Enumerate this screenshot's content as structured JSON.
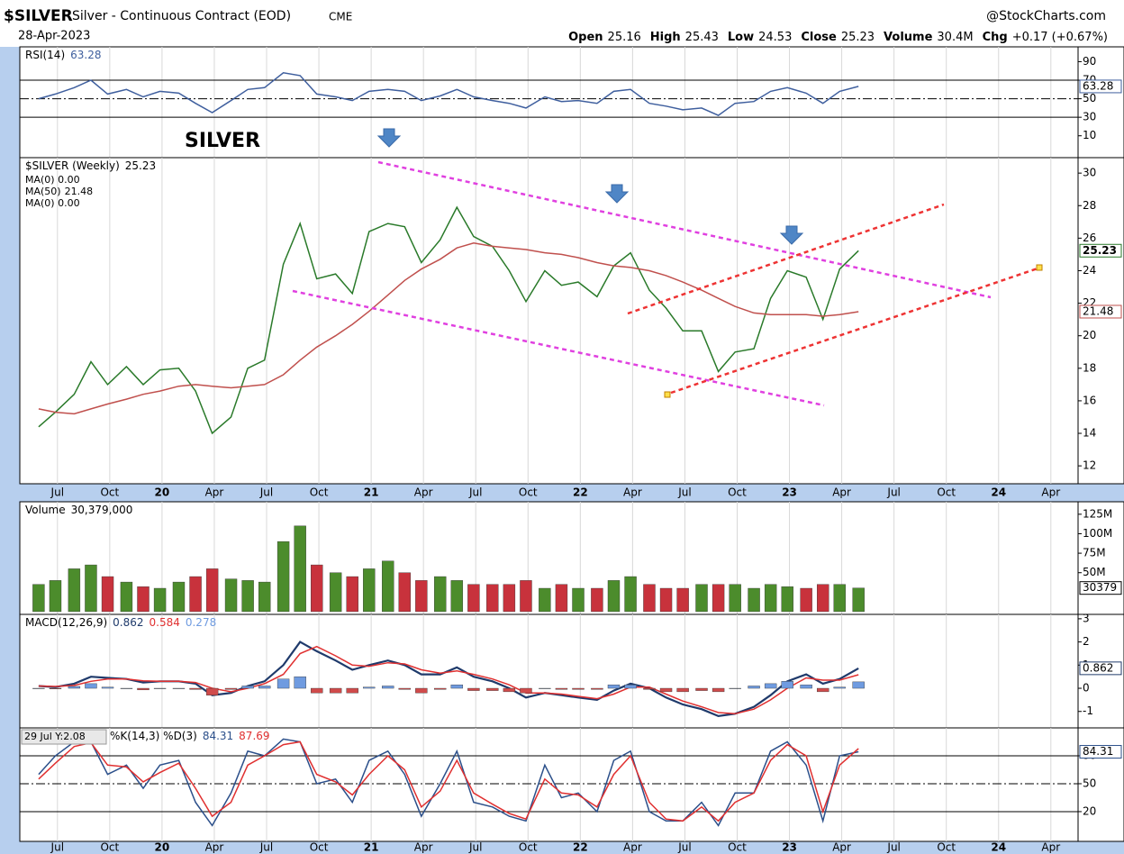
{
  "header": {
    "symbol": "$SILVER",
    "name": "Silver - Continuous Contract (EOD)",
    "exchange": "CME",
    "brand": "@StockCharts.com",
    "date": "28-Apr-2023",
    "quote": [
      {
        "label": "Open",
        "value": 25.16
      },
      {
        "label": "High",
        "value": 25.43
      },
      {
        "label": "Low",
        "value": 24.53
      },
      {
        "label": "Close",
        "value": 25.23
      },
      {
        "label": "Volume",
        "value": "30.4M"
      },
      {
        "label": "Chg",
        "value": "+0.17 (+0.67%)"
      }
    ]
  },
  "chart_data": [
    {
      "type": "line",
      "title": "RSI(14)",
      "x": [
        2019.41,
        2019.49,
        2019.58,
        2019.66,
        2019.74,
        2019.83,
        2019.91,
        2019.99,
        2020.08,
        2020.16,
        2020.24,
        2020.33,
        2020.41,
        2020.49,
        2020.58,
        2020.66,
        2020.74,
        2020.83,
        2020.91,
        2020.99,
        2021.08,
        2021.16,
        2021.24,
        2021.33,
        2021.41,
        2021.49,
        2021.58,
        2021.66,
        2021.74,
        2021.83,
        2021.91,
        2021.99,
        2022.08,
        2022.16,
        2022.24,
        2022.33,
        2022.41,
        2022.49,
        2022.58,
        2022.66,
        2022.74,
        2022.83,
        2022.91,
        2022.99,
        2023.08,
        2023.16,
        2023.24,
        2023.33
      ],
      "xlim": [
        2019.32,
        2024.38
      ],
      "ylim": [
        -13.6,
        106
      ],
      "yticks": [
        10,
        30,
        50,
        70,
        90
      ],
      "reference_lines": [
        {
          "value": 70,
          "style": "solid"
        },
        {
          "value": 50,
          "style": "dashdot"
        },
        {
          "value": 30,
          "style": "solid"
        }
      ],
      "annotation": "SILVER",
      "series": [
        {
          "name": "RSI(14)",
          "color": "#3f5f9e",
          "marker": true,
          "values": [
            50,
            55,
            62,
            70,
            55,
            60,
            52,
            58,
            56,
            45,
            35,
            48,
            60,
            62,
            78,
            75,
            55,
            52,
            48,
            58,
            60,
            58,
            48,
            53,
            60,
            52,
            48,
            45,
            40,
            52,
            47,
            48,
            45,
            58,
            60,
            45,
            42,
            38,
            40,
            32,
            45,
            47,
            58,
            62,
            56,
            45,
            58,
            63.28
          ]
        }
      ]
    },
    {
      "type": "line",
      "title": "$SILVER (Weekly)",
      "x": [
        2019.41,
        2019.49,
        2019.58,
        2019.66,
        2019.74,
        2019.83,
        2019.91,
        2019.99,
        2020.08,
        2020.16,
        2020.24,
        2020.33,
        2020.41,
        2020.49,
        2020.58,
        2020.66,
        2020.74,
        2020.83,
        2020.91,
        2020.99,
        2021.08,
        2021.16,
        2021.24,
        2021.33,
        2021.41,
        2021.49,
        2021.58,
        2021.66,
        2021.74,
        2021.83,
        2021.91,
        2021.99,
        2022.08,
        2022.16,
        2022.24,
        2022.33,
        2022.41,
        2022.49,
        2022.58,
        2022.66,
        2022.74,
        2022.83,
        2022.91,
        2022.99,
        2023.08,
        2023.16,
        2023.24,
        2023.33
      ],
      "xlim": [
        2019.32,
        2024.38
      ],
      "ylim": [
        10.9,
        30.95
      ],
      "yticks": [
        12,
        14,
        16,
        18,
        20,
        22,
        24,
        26,
        28,
        30
      ],
      "xticks": [
        {
          "value": 2019.5,
          "label": "Jul"
        },
        {
          "value": 2019.75,
          "label": "Oct"
        },
        {
          "value": 2020,
          "label": "20"
        },
        {
          "value": 2020.25,
          "label": "Apr"
        },
        {
          "value": 2020.5,
          "label": "Jul"
        },
        {
          "value": 2020.75,
          "label": "Oct"
        },
        {
          "value": 2021,
          "label": "21"
        },
        {
          "value": 2021.25,
          "label": "Apr"
        },
        {
          "value": 2021.5,
          "label": "Jul"
        },
        {
          "value": 2021.75,
          "label": "Oct"
        },
        {
          "value": 2022,
          "label": "22"
        },
        {
          "value": 2022.25,
          "label": "Apr"
        },
        {
          "value": 2022.5,
          "label": "Jul"
        },
        {
          "value": 2022.75,
          "label": "Oct"
        },
        {
          "value": 2023,
          "label": "23"
        },
        {
          "value": 2023.25,
          "label": "Apr"
        },
        {
          "value": 2023.5,
          "label": "Jul"
        },
        {
          "value": 2023.75,
          "label": "Oct"
        },
        {
          "value": 2024,
          "label": "24"
        },
        {
          "value": 2024.25,
          "label": "Apr"
        }
      ],
      "legend_notes": [
        "MA(0) 0.00",
        "MA(0) 0.00"
      ],
      "series": [
        {
          "name": "$SILVER (Weekly)",
          "color": "#2a7a2a",
          "marker": true,
          "values": [
            14.4,
            15.3,
            16.4,
            18.4,
            17.0,
            18.1,
            17.0,
            17.9,
            18.0,
            16.6,
            14.0,
            15.0,
            18.0,
            18.5,
            24.4,
            26.9,
            23.5,
            23.8,
            22.6,
            26.4,
            26.9,
            26.7,
            24.5,
            25.9,
            27.9,
            26.1,
            25.5,
            24.0,
            22.1,
            24.0,
            23.1,
            23.3,
            22.4,
            24.3,
            25.1,
            22.8,
            21.7,
            20.3,
            20.3,
            17.8,
            19.0,
            19.2,
            22.3,
            24.0,
            23.6,
            21.0,
            24.1,
            25.23
          ]
        },
        {
          "name": "MA(50)",
          "color": "#c0504d",
          "marker": true,
          "values": [
            15.5,
            15.3,
            15.2,
            15.5,
            15.8,
            16.1,
            16.4,
            16.6,
            16.9,
            17.0,
            16.9,
            16.8,
            16.9,
            17.0,
            17.6,
            18.5,
            19.3,
            20.0,
            20.7,
            21.5,
            22.5,
            23.4,
            24.1,
            24.7,
            25.4,
            25.7,
            25.5,
            25.4,
            25.3,
            25.1,
            25.0,
            24.8,
            24.5,
            24.3,
            24.2,
            24.0,
            23.7,
            23.3,
            22.8,
            22.3,
            21.8,
            21.4,
            21.3,
            21.3,
            21.3,
            21.2,
            21.3,
            21.48
          ]
        }
      ]
    },
    {
      "type": "bar",
      "title": "Volume",
      "legend_value": "30,379,000",
      "marker_label": "30379",
      "x": [
        2019.41,
        2019.49,
        2019.58,
        2019.66,
        2019.74,
        2019.83,
        2019.91,
        2019.99,
        2020.08,
        2020.16,
        2020.24,
        2020.33,
        2020.41,
        2020.49,
        2020.58,
        2020.66,
        2020.74,
        2020.83,
        2020.91,
        2020.99,
        2021.08,
        2021.16,
        2021.24,
        2021.33,
        2021.41,
        2021.49,
        2021.58,
        2021.66,
        2021.74,
        2021.83,
        2021.91,
        2021.99,
        2022.08,
        2022.16,
        2022.24,
        2022.33,
        2022.41,
        2022.49,
        2022.58,
        2022.66,
        2022.74,
        2022.83,
        2022.91,
        2022.99,
        2023.08,
        2023.16,
        2023.24,
        2023.33
      ],
      "xlim": [
        2019.32,
        2024.38
      ],
      "ylim": [
        -3500000,
        141000000
      ],
      "yticks": [
        {
          "value": 50000000,
          "label": "50M"
        },
        {
          "value": 75000000,
          "label": "75M"
        },
        {
          "value": 100000000,
          "label": "100M"
        },
        {
          "value": 125000000,
          "label": "125M"
        }
      ],
      "up_color": "#4c8c2c",
      "down_color": "#c8323c",
      "series": [
        {
          "name": "Volume",
          "values": [
            35000000,
            40000000,
            55000000,
            60000000,
            45000000,
            38000000,
            32000000,
            30000000,
            38000000,
            45000000,
            55000000,
            42000000,
            40000000,
            38000000,
            90000000,
            110000000,
            60000000,
            50000000,
            45000000,
            55000000,
            65000000,
            50000000,
            40000000,
            45000000,
            40000000,
            35000000,
            35000000,
            35000000,
            40000000,
            30000000,
            35000000,
            30000000,
            30000000,
            40000000,
            45000000,
            35000000,
            30000000,
            30000000,
            35000000,
            35000000,
            35000000,
            30000000,
            35000000,
            32000000,
            30000000,
            35000000,
            35000000,
            30379000
          ]
        }
      ]
    },
    {
      "type": "line",
      "title": "MACD(12,26,9)",
      "x": [
        2019.41,
        2019.49,
        2019.58,
        2019.66,
        2019.74,
        2019.83,
        2019.91,
        2019.99,
        2020.08,
        2020.16,
        2020.24,
        2020.33,
        2020.41,
        2020.49,
        2020.58,
        2020.66,
        2020.74,
        2020.83,
        2020.91,
        2020.99,
        2021.08,
        2021.16,
        2021.24,
        2021.33,
        2021.41,
        2021.49,
        2021.58,
        2021.66,
        2021.74,
        2021.83,
        2021.91,
        2021.99,
        2022.08,
        2022.16,
        2022.24,
        2022.33,
        2022.41,
        2022.49,
        2022.58,
        2022.66,
        2022.74,
        2022.83,
        2022.91,
        2022.99,
        2023.08,
        2023.16,
        2023.24,
        2023.33
      ],
      "xlim": [
        2019.32,
        2024.38
      ],
      "ylim": [
        -1.71,
        3.19
      ],
      "yticks": [
        -1,
        0,
        1,
        2,
        3
      ],
      "series": [
        {
          "name": "MACD",
          "color": "#1f3a6b",
          "marker": true,
          "values": [
            0.1,
            0.05,
            0.2,
            0.5,
            0.45,
            0.4,
            0.25,
            0.3,
            0.3,
            0.2,
            -0.3,
            -0.2,
            0.1,
            0.3,
            1.0,
            2.0,
            1.6,
            1.2,
            0.8,
            1.0,
            1.2,
            1.0,
            0.6,
            0.6,
            0.9,
            0.5,
            0.3,
            0.0,
            -0.4,
            -0.2,
            -0.3,
            -0.4,
            -0.5,
            -0.1,
            0.2,
            0.0,
            -0.4,
            -0.7,
            -0.9,
            -1.2,
            -1.1,
            -0.8,
            -0.3,
            0.3,
            0.6,
            0.2,
            0.4,
            0.862
          ]
        },
        {
          "name": "Signal",
          "color": "#e03030",
          "values": [
            0.1,
            0.08,
            0.12,
            0.3,
            0.4,
            0.4,
            0.32,
            0.3,
            0.3,
            0.25,
            0.0,
            -0.15,
            0.0,
            0.2,
            0.6,
            1.5,
            1.8,
            1.4,
            1.0,
            0.95,
            1.1,
            1.05,
            0.8,
            0.65,
            0.75,
            0.6,
            0.4,
            0.15,
            -0.2,
            -0.2,
            -0.25,
            -0.35,
            -0.45,
            -0.25,
            0.05,
            0.05,
            -0.25,
            -0.55,
            -0.8,
            -1.05,
            -1.1,
            -0.9,
            -0.5,
            0.0,
            0.45,
            0.35,
            0.35,
            0.584
          ]
        },
        {
          "name": "Histogram",
          "type": "bar",
          "color": "#6f9be0",
          "down_color": "#d04b4b",
          "values": [
            0,
            -0.03,
            0.08,
            0.2,
            0.05,
            0,
            -0.07,
            0,
            0,
            -0.05,
            -0.3,
            -0.05,
            0.1,
            0.1,
            0.4,
            0.5,
            -0.2,
            -0.2,
            -0.2,
            0.05,
            0.1,
            -0.05,
            -0.2,
            -0.05,
            0.15,
            -0.1,
            -0.1,
            -0.15,
            -0.2,
            0,
            -0.05,
            -0.05,
            -0.05,
            0.15,
            0.15,
            -0.05,
            -0.15,
            -0.15,
            -0.1,
            -0.15,
            0,
            0.1,
            0.2,
            0.3,
            0.15,
            -0.15,
            0.05,
            0.278
          ]
        }
      ]
    },
    {
      "type": "line",
      "title": "%K(14,3) %D(3)",
      "tooltip": "29 Jul Y:2.08",
      "x": [
        2019.41,
        2019.49,
        2019.58,
        2019.66,
        2019.74,
        2019.83,
        2019.91,
        2019.99,
        2020.08,
        2020.16,
        2020.24,
        2020.33,
        2020.41,
        2020.49,
        2020.58,
        2020.66,
        2020.74,
        2020.83,
        2020.91,
        2020.99,
        2021.08,
        2021.16,
        2021.24,
        2021.33,
        2021.41,
        2021.49,
        2021.58,
        2021.66,
        2021.74,
        2021.83,
        2021.91,
        2021.99,
        2022.08,
        2022.16,
        2022.24,
        2022.33,
        2022.41,
        2022.49,
        2022.58,
        2022.66,
        2022.74,
        2022.83,
        2022.91,
        2022.99,
        2023.08,
        2023.16,
        2023.24,
        2023.33
      ],
      "xlim": [
        2019.32,
        2024.38
      ],
      "ylim": [
        -12,
        110
      ],
      "yticks": [
        20,
        50,
        80
      ],
      "xticks": [
        {
          "value": 2019.5,
          "label": "Jul"
        },
        {
          "value": 2019.75,
          "label": "Oct"
        },
        {
          "value": 2020,
          "label": "20"
        },
        {
          "value": 2020.25,
          "label": "Apr"
        },
        {
          "value": 2020.5,
          "label": "Jul"
        },
        {
          "value": 2020.75,
          "label": "Oct"
        },
        {
          "value": 2021,
          "label": "21"
        },
        {
          "value": 2021.25,
          "label": "Apr"
        },
        {
          "value": 2021.5,
          "label": "Jul"
        },
        {
          "value": 2021.75,
          "label": "Oct"
        },
        {
          "value": 2022,
          "label": "22"
        },
        {
          "value": 2022.25,
          "label": "Apr"
        },
        {
          "value": 2022.5,
          "label": "Jul"
        },
        {
          "value": 2022.75,
          "label": "Oct"
        },
        {
          "value": 2023,
          "label": "23"
        },
        {
          "value": 2023.25,
          "label": "Apr"
        },
        {
          "value": 2023.5,
          "label": "Jul"
        },
        {
          "value": 2023.75,
          "label": "Oct"
        },
        {
          "value": 2024,
          "label": "24"
        },
        {
          "value": 2024.25,
          "label": "Apr"
        }
      ],
      "reference_lines": [
        {
          "value": 80,
          "style": "solid"
        },
        {
          "value": 50,
          "style": "dashdot"
        },
        {
          "value": 20,
          "style": "solid"
        }
      ],
      "series": [
        {
          "name": "%K",
          "color": "#2b4f8a",
          "marker": true,
          "values": [
            60,
            80,
            95,
            95,
            60,
            70,
            45,
            70,
            75,
            30,
            5,
            40,
            85,
            80,
            98,
            95,
            50,
            55,
            30,
            75,
            85,
            60,
            15,
            50,
            85,
            30,
            25,
            15,
            10,
            70,
            35,
            40,
            20,
            75,
            85,
            20,
            10,
            10,
            30,
            5,
            40,
            40,
            85,
            95,
            70,
            10,
            80,
            84.31
          ]
        },
        {
          "name": "%D",
          "color": "#e03030",
          "values": [
            55,
            72,
            90,
            94,
            70,
            68,
            52,
            62,
            72,
            45,
            15,
            30,
            70,
            80,
            92,
            95,
            60,
            52,
            38,
            60,
            80,
            65,
            25,
            42,
            75,
            40,
            28,
            18,
            12,
            55,
            40,
            38,
            25,
            60,
            80,
            30,
            12,
            10,
            25,
            10,
            30,
            40,
            75,
            92,
            80,
            20,
            70,
            87.69
          ]
        }
      ]
    }
  ]
}
